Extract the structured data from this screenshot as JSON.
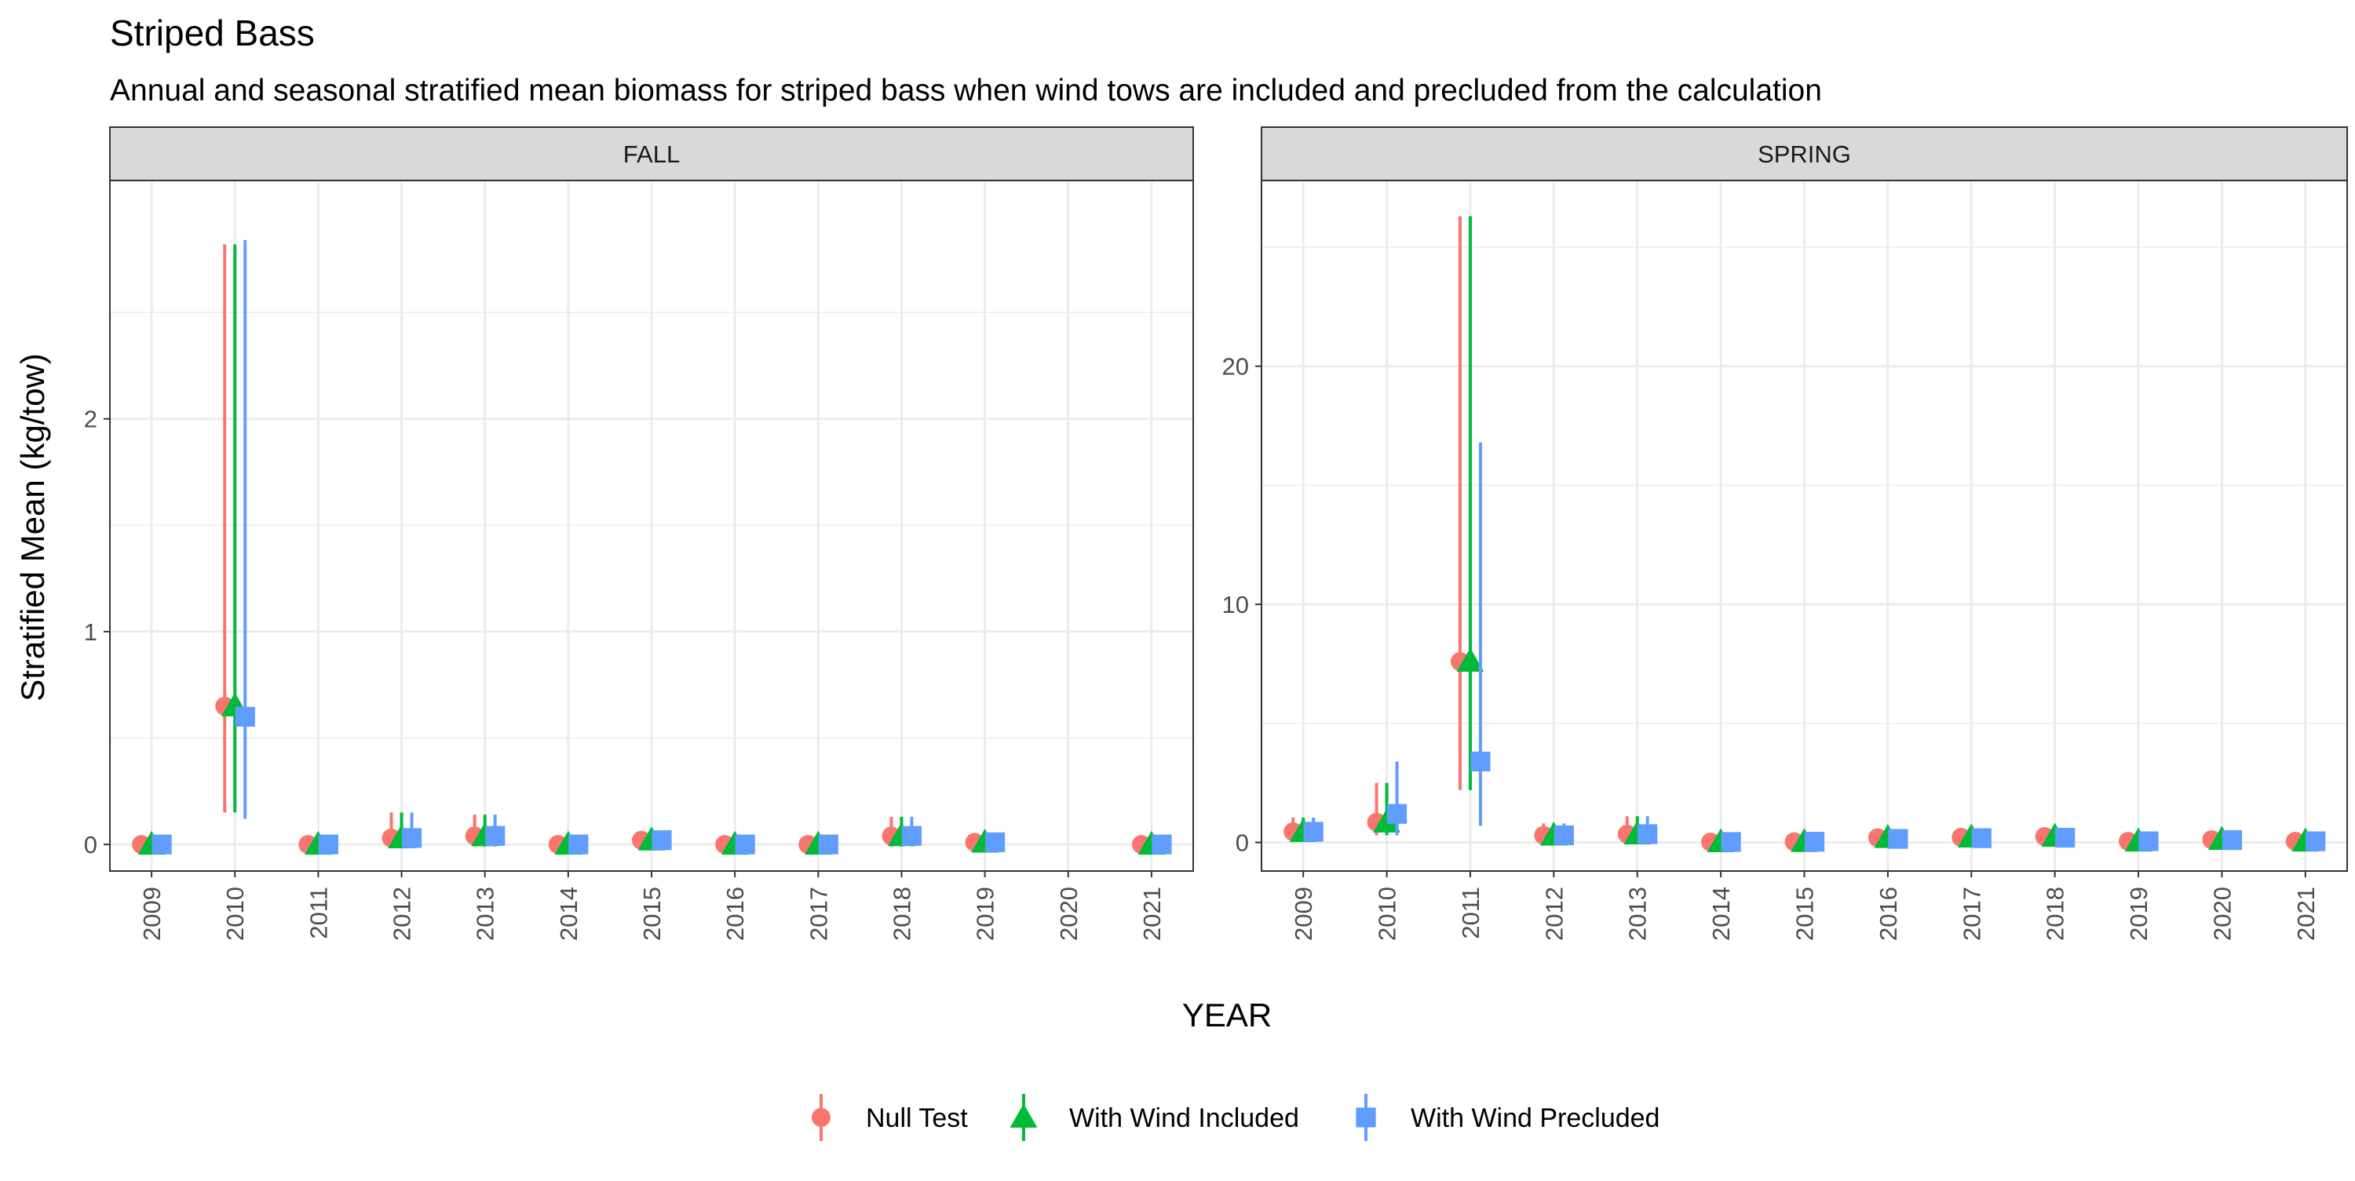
{
  "chart_data": {
    "type": "scatter",
    "title": "Striped Bass",
    "subtitle": "Annual and seasonal stratified mean biomass for striped bass when wind tows are included and precluded from the calculation",
    "xlabel": "YEAR",
    "ylabel": "Stratified Mean (kg/tow)",
    "legend_position": "bottom",
    "grid": true,
    "categories": [
      "2009",
      "2010",
      "2011",
      "2012",
      "2013",
      "2014",
      "2015",
      "2016",
      "2017",
      "2018",
      "2019",
      "2020",
      "2021"
    ],
    "series_meta": [
      {
        "name": "Null Test",
        "color": "#F8766D",
        "shape": "circle"
      },
      {
        "name": "With Wind Included",
        "color": "#00BA38",
        "shape": "triangle"
      },
      {
        "name": "With Wind Precluded",
        "color": "#619CFF",
        "shape": "square"
      }
    ],
    "panels": [
      {
        "name": "FALL",
        "ylim": [
          -0.125,
          3.12
        ],
        "yticks": [
          0,
          1,
          2
        ],
        "series": [
          {
            "name": "Null Test",
            "y": [
              0.0,
              0.65,
              0.0,
              0.03,
              0.04,
              0.0,
              0.02,
              0.0,
              0.0,
              0.04,
              0.01,
              null,
              0.0
            ],
            "lo": [
              0.0,
              0.15,
              0.0,
              -0.01,
              -0.01,
              0.0,
              -0.01,
              0.0,
              0.0,
              -0.01,
              0.0,
              null,
              0.0
            ],
            "hi": [
              0.0,
              2.82,
              0.0,
              0.15,
              0.14,
              0.0,
              0.05,
              0.0,
              0.0,
              0.13,
              0.02,
              null,
              0.0
            ]
          },
          {
            "name": "With Wind Included",
            "y": [
              0.0,
              0.65,
              0.0,
              0.03,
              0.04,
              0.0,
              0.02,
              0.0,
              0.0,
              0.04,
              0.01,
              null,
              0.0
            ],
            "lo": [
              0.0,
              0.15,
              0.0,
              -0.01,
              -0.01,
              0.0,
              -0.01,
              0.0,
              0.0,
              -0.01,
              0.0,
              null,
              0.0
            ],
            "hi": [
              0.0,
              2.82,
              0.0,
              0.15,
              0.14,
              0.0,
              0.05,
              0.0,
              0.0,
              0.13,
              0.02,
              null,
              0.0
            ]
          },
          {
            "name": "With Wind Precluded",
            "y": [
              0.0,
              0.6,
              0.0,
              0.03,
              0.04,
              0.0,
              0.02,
              0.0,
              0.0,
              0.04,
              0.01,
              null,
              0.0
            ],
            "lo": [
              0.0,
              0.12,
              0.0,
              -0.01,
              -0.01,
              0.0,
              -0.01,
              0.0,
              0.0,
              -0.01,
              0.0,
              null,
              0.0
            ],
            "hi": [
              0.0,
              2.84,
              0.0,
              0.15,
              0.14,
              0.0,
              0.05,
              0.0,
              0.0,
              0.13,
              0.02,
              null,
              0.0
            ]
          }
        ]
      },
      {
        "name": "SPRING",
        "ylim": [
          -1.2,
          27.8
        ],
        "yticks": [
          0,
          10,
          20
        ],
        "series": [
          {
            "name": "Null Test",
            "y": [
              0.45,
              0.85,
              7.6,
              0.3,
              0.35,
              0.02,
              0.03,
              0.2,
              0.22,
              0.25,
              0.05,
              0.12,
              0.05
            ],
            "lo": [
              0.1,
              0.3,
              2.2,
              0.0,
              0.0,
              0.0,
              0.0,
              0.0,
              0.0,
              0.0,
              0.0,
              0.0,
              0.0
            ],
            "hi": [
              1.05,
              2.5,
              26.3,
              0.8,
              1.1,
              0.1,
              0.15,
              0.55,
              0.5,
              0.6,
              0.2,
              0.35,
              0.2
            ]
          },
          {
            "name": "With Wind Included",
            "y": [
              0.45,
              0.85,
              7.6,
              0.3,
              0.35,
              0.02,
              0.03,
              0.2,
              0.22,
              0.25,
              0.05,
              0.12,
              0.05
            ],
            "lo": [
              0.1,
              0.3,
              2.2,
              0.0,
              0.0,
              0.0,
              0.0,
              0.0,
              0.0,
              0.0,
              0.0,
              0.0,
              0.0
            ],
            "hi": [
              1.05,
              2.5,
              26.3,
              0.8,
              1.1,
              0.1,
              0.15,
              0.55,
              0.5,
              0.6,
              0.2,
              0.35,
              0.2
            ]
          },
          {
            "name": "With Wind Precluded",
            "y": [
              0.45,
              1.2,
              3.4,
              0.3,
              0.35,
              0.02,
              0.03,
              0.15,
              0.18,
              0.2,
              0.05,
              0.1,
              0.05
            ],
            "lo": [
              0.1,
              0.3,
              0.7,
              0.0,
              0.0,
              0.0,
              0.0,
              0.0,
              0.0,
              0.0,
              0.0,
              0.0,
              0.0
            ],
            "hi": [
              1.05,
              3.4,
              16.8,
              0.8,
              1.1,
              0.1,
              0.15,
              0.45,
              0.45,
              0.5,
              0.2,
              0.3,
              0.2
            ]
          }
        ]
      }
    ]
  }
}
